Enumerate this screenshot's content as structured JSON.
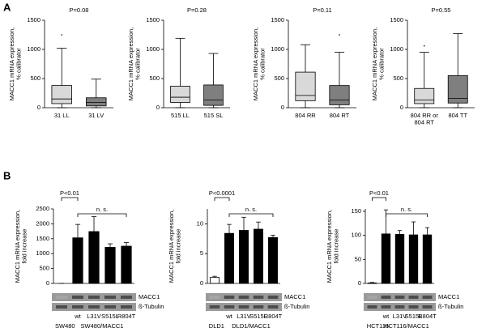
{
  "panel_labels": [
    "A",
    "B"
  ],
  "chart_data": [
    {
      "type": "box",
      "title": "P=0.08",
      "ylabel": "MACC1 mRNA expression,\n% calibrator",
      "categories": [
        "31 LL",
        "31 LV"
      ],
      "colors": [
        "#d9d9d9",
        "#7f7f7f"
      ],
      "boxes": [
        {
          "min": 0,
          "q1": 70,
          "median": 150,
          "q3": 380,
          "max": 1020,
          "outliers": [
            1250
          ]
        },
        {
          "min": 0,
          "q1": 30,
          "median": 90,
          "q3": 170,
          "max": 490,
          "outliers": []
        }
      ],
      "ylim": [
        0,
        1500
      ],
      "yticks": [
        0,
        500,
        1000,
        1500
      ]
    },
    {
      "type": "box",
      "title": "P=0.28",
      "ylabel": "MACC1 mRNA expression,\n% calibrator",
      "categories": [
        "515 LL",
        "515 SL"
      ],
      "colors": [
        "#d9d9d9",
        "#7f7f7f"
      ],
      "boxes": [
        {
          "min": 0,
          "q1": 90,
          "median": 180,
          "q3": 370,
          "max": 1190,
          "outliers": []
        },
        {
          "min": 0,
          "q1": 40,
          "median": 130,
          "q3": 390,
          "max": 930,
          "outliers": []
        }
      ],
      "ylim": [
        0,
        1500
      ],
      "yticks": [
        0,
        500,
        1000,
        1500
      ]
    },
    {
      "type": "box",
      "title": "P=0.11",
      "ylabel": "MACC1 mRNA expression,\n% calibrator",
      "categories": [
        "804 RR",
        "804 RT"
      ],
      "colors": [
        "#d9d9d9",
        "#7f7f7f"
      ],
      "boxes": [
        {
          "min": 0,
          "q1": 120,
          "median": 210,
          "q3": 610,
          "max": 1080,
          "outliers": []
        },
        {
          "min": 0,
          "q1": 50,
          "median": 130,
          "q3": 380,
          "max": 950,
          "outliers": [
            1250
          ]
        }
      ],
      "ylim": [
        0,
        1500
      ],
      "yticks": [
        0,
        500,
        1000,
        1500
      ]
    },
    {
      "type": "box",
      "title": "P=0.55",
      "ylabel": "MACC1 mRNA expression,\n% calibrator",
      "categories": [
        "804 RR or\n804 RT",
        "804 TT"
      ],
      "colors": [
        "#d9d9d9",
        "#7f7f7f"
      ],
      "boxes": [
        {
          "min": 0,
          "q1": 70,
          "median": 130,
          "q3": 330,
          "max": 950,
          "outliers": [
            1060
          ]
        },
        {
          "min": 0,
          "q1": 80,
          "median": 160,
          "q3": 550,
          "max": 1270,
          "outliers": []
        }
      ],
      "ylim": [
        0,
        1500
      ],
      "yticks": [
        0,
        500,
        1000,
        1500
      ]
    },
    {
      "type": "bar",
      "ylabel": "MACC1 mRNA expression,\nfold increase",
      "categories": [
        null,
        "wt",
        "L31V",
        "S515L",
        "R804T"
      ],
      "values": [
        0,
        1530,
        1740,
        1210,
        1250
      ],
      "errors": [
        0,
        450,
        500,
        120,
        120
      ],
      "colors": [
        "#ffffff",
        "#000000",
        "#000000",
        "#000000",
        "#000000"
      ],
      "ylim": [
        0,
        2500
      ],
      "yticks": [
        0,
        500,
        1000,
        1500,
        2000,
        2500
      ],
      "annotations": [
        "P<0.01",
        "n. s."
      ],
      "blot_labels": [
        "MACC1",
        "ß-Tubulin"
      ],
      "group_labels": [
        "SW480",
        "SW480/MACC1"
      ]
    },
    {
      "type": "bar",
      "ylabel": "MACC1 mRNA expression,\nfold increase",
      "categories": [
        null,
        "wt",
        "L31V",
        "S515L",
        "R804T"
      ],
      "values": [
        1.0,
        8.4,
        8.9,
        9.1,
        7.7
      ],
      "errors": [
        0.2,
        1.5,
        2.2,
        1.2,
        0.4
      ],
      "colors": [
        "#ffffff",
        "#000000",
        "#000000",
        "#000000",
        "#000000"
      ],
      "ylim": [
        0,
        12.5
      ],
      "yticks": [
        0,
        5,
        10
      ],
      "annotations": [
        "P<0.0001",
        "n. s."
      ],
      "blot_labels": [
        "MACC1",
        "ß-Tubulin"
      ],
      "group_labels": [
        "DLD1",
        "DLD1/MACC1"
      ]
    },
    {
      "type": "bar",
      "ylabel": "MACC1 mRNA expression,\nfold increase",
      "categories": [
        null,
        "wt",
        "L31V",
        "S515L",
        "R804T"
      ],
      "values": [
        1,
        103,
        102,
        101,
        101
      ],
      "errors": [
        1,
        50,
        8,
        27,
        15
      ],
      "colors": [
        "#ffffff",
        "#000000",
        "#000000",
        "#000000",
        "#000000"
      ],
      "ylim": [
        0,
        155
      ],
      "yticks": [
        0,
        50,
        100,
        150
      ],
      "annotations": [
        "P<0.01",
        "n. s."
      ],
      "blot_labels": [
        "MACC1",
        "ß-Tubulin"
      ],
      "group_labels": [
        "HCT116",
        "HCT116/MACC1"
      ]
    }
  ]
}
